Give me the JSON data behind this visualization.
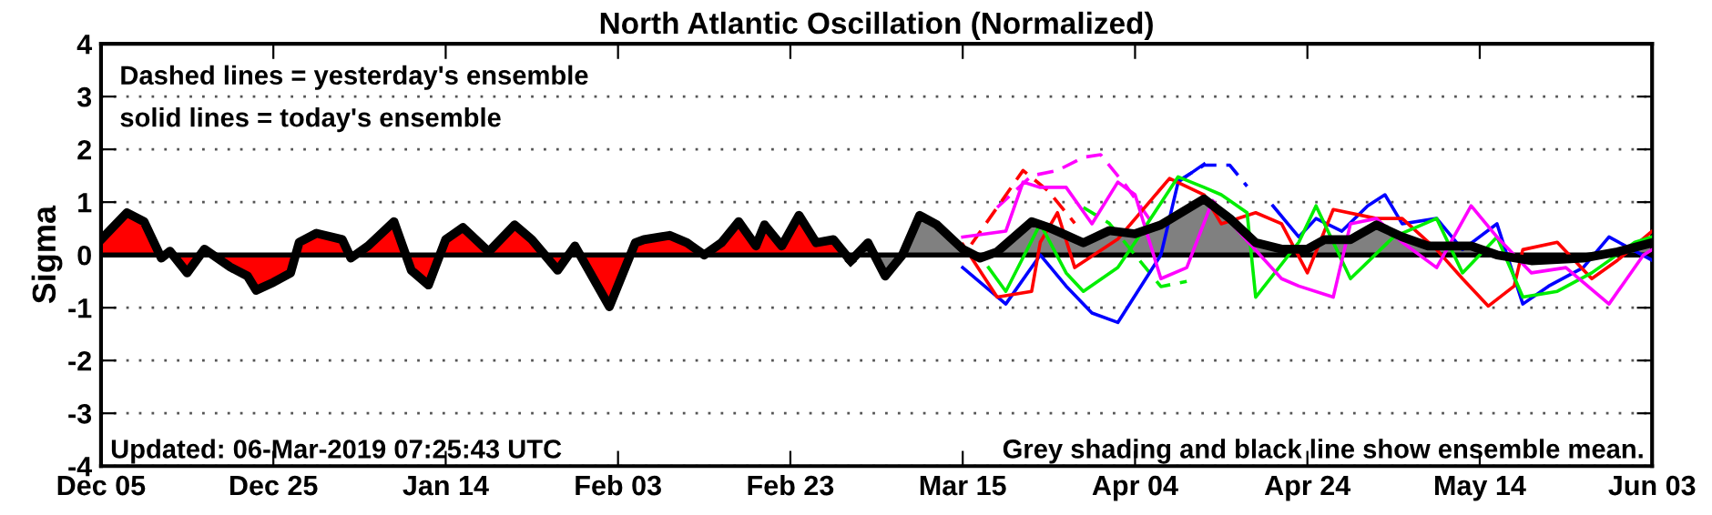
{
  "chart_data": {
    "type": "line",
    "title": "North Atlantic Oscillation (Normalized)",
    "ylabel": "Sigma",
    "xlim": [
      "2018-12-05",
      "2019-06-03"
    ],
    "xticks": [
      {
        "value": "2018-12-05",
        "label": "Dec 05"
      },
      {
        "value": "2018-12-25",
        "label": "Dec 25"
      },
      {
        "value": "2019-01-14",
        "label": "Jan 14"
      },
      {
        "value": "2019-02-03",
        "label": "Feb 03"
      },
      {
        "value": "2019-02-23",
        "label": "Feb 23"
      },
      {
        "value": "2019-03-15",
        "label": "Mar 15"
      },
      {
        "value": "2019-04-04",
        "label": "Apr 04"
      },
      {
        "value": "2019-04-24",
        "label": "Apr 24"
      },
      {
        "value": "2019-05-14",
        "label": "May 14"
      },
      {
        "value": "2019-06-03",
        "label": "Jun 03"
      }
    ],
    "ylim": [
      -4,
      4
    ],
    "yticks": [
      -4,
      -3,
      -2,
      -1,
      0,
      1,
      2,
      3,
      4
    ],
    "grid": "y",
    "legend": false,
    "ref_lines": [
      {
        "axis": "y",
        "value": 0,
        "label": null,
        "color": "#000000"
      }
    ],
    "annotations": [
      "Dashed lines = yesterday's ensemble",
      "solid lines = today's ensemble",
      "Updated: 06-Mar-2019 07:25:43 UTC",
      "Grey shading and black line show ensemble mean."
    ],
    "series": [
      {
        "type": "area",
        "color": "#ff0000",
        "x": [
          "2018-12-05",
          "2018-12-08",
          "2018-12-10",
          "2018-12-12",
          "2018-12-13",
          "2018-12-15",
          "2018-12-17",
          "2018-12-20",
          "2018-12-22",
          "2018-12-23",
          "2018-12-25",
          "2018-12-27",
          "2018-12-28",
          "2018-12-30",
          "2019-01-02",
          "2019-01-03",
          "2019-01-05",
          "2019-01-08",
          "2019-01-10",
          "2019-01-12",
          "2019-01-14",
          "2019-01-16",
          "2019-01-19",
          "2019-01-22",
          "2019-01-24",
          "2019-01-27",
          "2019-01-29",
          "2019-02-02",
          "2019-02-05",
          "2019-02-06",
          "2019-02-09",
          "2019-02-11",
          "2019-02-13",
          "2019-02-15",
          "2019-02-17",
          "2019-02-19",
          "2019-02-20",
          "2019-02-22",
          "2019-02-24",
          "2019-02-26",
          "2019-02-28",
          "2019-03-02"
        ],
        "values": [
          0.29,
          0.8,
          0.63,
          -0.06,
          0.07,
          -0.34,
          0.11,
          -0.23,
          -0.4,
          -0.67,
          -0.52,
          -0.34,
          0.24,
          0.41,
          0.29,
          -0.06,
          0.17,
          0.63,
          -0.29,
          -0.57,
          0.29,
          0.52,
          0.06,
          0.57,
          0.29,
          -0.29,
          0.17,
          -0.98,
          0.23,
          0.29,
          0.37,
          0.23,
          0,
          0.23,
          0.63,
          0.17,
          0.57,
          0.17,
          0.75,
          0.23,
          0.29,
          -0.11
        ]
      },
      {
        "type": "area",
        "color": "#808080",
        "x": [
          "2019-03-02",
          "2019-03-04",
          "2019-03-06",
          "2019-03-08",
          "2019-03-10",
          "2019-03-12",
          "2019-03-15",
          "2019-03-17",
          "2019-03-19",
          "2019-03-23",
          "2019-03-25",
          "2019-03-29",
          "2019-04-01",
          "2019-04-04",
          "2019-04-07",
          "2019-04-12",
          "2019-04-15",
          "2019-04-18",
          "2019-04-21",
          "2019-04-24",
          "2019-04-26",
          "2019-04-29",
          "2019-05-02",
          "2019-05-05",
          "2019-05-08",
          "2019-05-13",
          "2019-05-16",
          "2019-05-20",
          "2019-05-26",
          "2019-05-30",
          "2019-06-03"
        ],
        "values": [
          -0.11,
          0.23,
          -0.4,
          0,
          0.75,
          0.57,
          0.11,
          -0.06,
          0.06,
          0.63,
          0.52,
          0.23,
          0.46,
          0.4,
          0.57,
          1.06,
          0.69,
          0.23,
          0.11,
          0.11,
          0.29,
          0.29,
          0.57,
          0.34,
          0.17,
          0.17,
          0,
          -0.11,
          -0.06,
          0.06,
          0.23
        ]
      },
      {
        "color": "#ff00ff",
        "line_style": "dashed",
        "x": [
          "2019-03-19",
          "2019-03-23",
          "2019-03-26",
          "2019-03-29",
          "2019-03-31",
          "2019-04-03",
          "2019-04-06"
        ],
        "values": [
          0.9,
          1.5,
          1.6,
          1.85,
          1.9,
          1.3,
          0.6
        ]
      },
      {
        "color": "#ff0000",
        "line_style": "dashed",
        "x": [
          "2019-03-16",
          "2019-03-19",
          "2019-03-22",
          "2019-03-25",
          "2019-03-28"
        ],
        "values": [
          0.2,
          0.9,
          1.6,
          1.2,
          0.6
        ]
      },
      {
        "color": "#0000ff",
        "line_style": "dashed",
        "x": [
          "2019-04-09",
          "2019-04-12",
          "2019-04-15",
          "2019-04-17"
        ],
        "values": [
          1.4,
          1.7,
          1.7,
          1.3
        ]
      },
      {
        "color": "#00ee00",
        "line_style": "dashed",
        "x": [
          "2019-03-29",
          "2019-04-01",
          "2019-04-04",
          "2019-04-07",
          "2019-04-10"
        ],
        "values": [
          0.9,
          0.6,
          0,
          -0.6,
          -0.5
        ]
      },
      {
        "color": "#0000ff",
        "line_style": "solid",
        "x": [
          "2019-03-15",
          "2019-03-20",
          "2019-03-24",
          "2019-03-27",
          "2019-03-30",
          "2019-04-02",
          "2019-04-07",
          "2019-04-09",
          "2019-04-12",
          "2019-04-16",
          "2019-04-20",
          "2019-04-23",
          "2019-04-25",
          "2019-04-28",
          "2019-05-01",
          "2019-05-03",
          "2019-05-05",
          "2019-05-09",
          "2019-05-12",
          "2019-05-16",
          "2019-05-19",
          "2019-05-22",
          "2019-05-26",
          "2019-05-29",
          "2019-06-03"
        ],
        "values": [
          -0.24,
          -0.93,
          0,
          -0.59,
          -1.1,
          -1.28,
          0,
          1.38,
          1.72,
          null,
          0.93,
          0.34,
          0.69,
          0.45,
          0.93,
          1.14,
          0.59,
          0.69,
          0.1,
          0.59,
          -0.93,
          -0.59,
          -0.24,
          0.34,
          -0.1
        ]
      },
      {
        "color": "#ff0000",
        "line_style": "solid",
        "x": [
          "2019-03-15",
          "2019-03-19",
          "2019-03-23",
          "2019-03-24",
          "2019-03-26",
          "2019-03-28",
          "2019-04-02",
          "2019-04-08",
          "2019-04-12",
          "2019-04-14",
          "2019-04-18",
          "2019-04-21",
          "2019-04-24",
          "2019-04-27",
          "2019-05-02",
          "2019-05-05",
          "2019-05-09",
          "2019-05-12",
          "2019-05-15",
          "2019-05-18",
          "2019-05-19",
          "2019-05-23",
          "2019-05-27",
          "2019-05-30",
          "2019-06-03"
        ],
        "values": [
          0.2,
          -0.8,
          -0.69,
          0.24,
          0.8,
          -0.24,
          0.3,
          1.45,
          1.14,
          0.59,
          0.8,
          0.59,
          -0.34,
          0.86,
          0.69,
          0.69,
          0.1,
          -0.45,
          -0.97,
          -0.59,
          0.1,
          0.24,
          -0.45,
          -0.1,
          0.45
        ]
      },
      {
        "color": "#00ee00",
        "line_style": "solid",
        "x": [
          "2019-03-18",
          "2019-03-20",
          "2019-03-24",
          "2019-03-27",
          "2019-03-29",
          "2019-04-02",
          "2019-04-04",
          "2019-04-09",
          "2019-04-12",
          "2019-04-14",
          "2019-04-17",
          "2019-04-18",
          "2019-04-23",
          "2019-04-25",
          "2019-04-29",
          "2019-05-04",
          "2019-05-09",
          "2019-05-12",
          "2019-05-16",
          "2019-05-19",
          "2019-05-23",
          "2019-05-27",
          "2019-06-01",
          "2019-06-03"
        ],
        "values": [
          -0.24,
          -0.69,
          0.59,
          -0.34,
          -0.69,
          -0.24,
          0.24,
          1.48,
          1.28,
          1.14,
          0.8,
          -0.8,
          0.24,
          0.93,
          -0.45,
          0.34,
          0.69,
          -0.34,
          0.34,
          -0.8,
          -0.69,
          -0.34,
          0.24,
          0.34
        ]
      },
      {
        "color": "#ff00ff",
        "line_style": "solid",
        "x": [
          "2019-03-15",
          "2019-03-20",
          "2019-03-22",
          "2019-03-24",
          "2019-03-27",
          "2019-03-30",
          "2019-04-02",
          "2019-04-04",
          "2019-04-07",
          "2019-04-10",
          "2019-04-13",
          "2019-04-16",
          "2019-04-21",
          "2019-04-23",
          "2019-04-27",
          "2019-04-29",
          "2019-05-02",
          "2019-05-05",
          "2019-05-09",
          "2019-05-13",
          "2019-05-16",
          "2019-05-20",
          "2019-05-24",
          "2019-05-29",
          "2019-06-02",
          "2019-06-03"
        ],
        "values": [
          0.34,
          0.45,
          1.38,
          1.28,
          1.28,
          0.59,
          1.38,
          1.14,
          -0.45,
          -0.24,
          1.03,
          0.45,
          -0.45,
          -0.59,
          -0.8,
          0.59,
          0.69,
          0.24,
          -0.24,
          0.93,
          0.34,
          -0.34,
          -0.24,
          -0.93,
          0,
          0.1
        ]
      }
    ]
  }
}
